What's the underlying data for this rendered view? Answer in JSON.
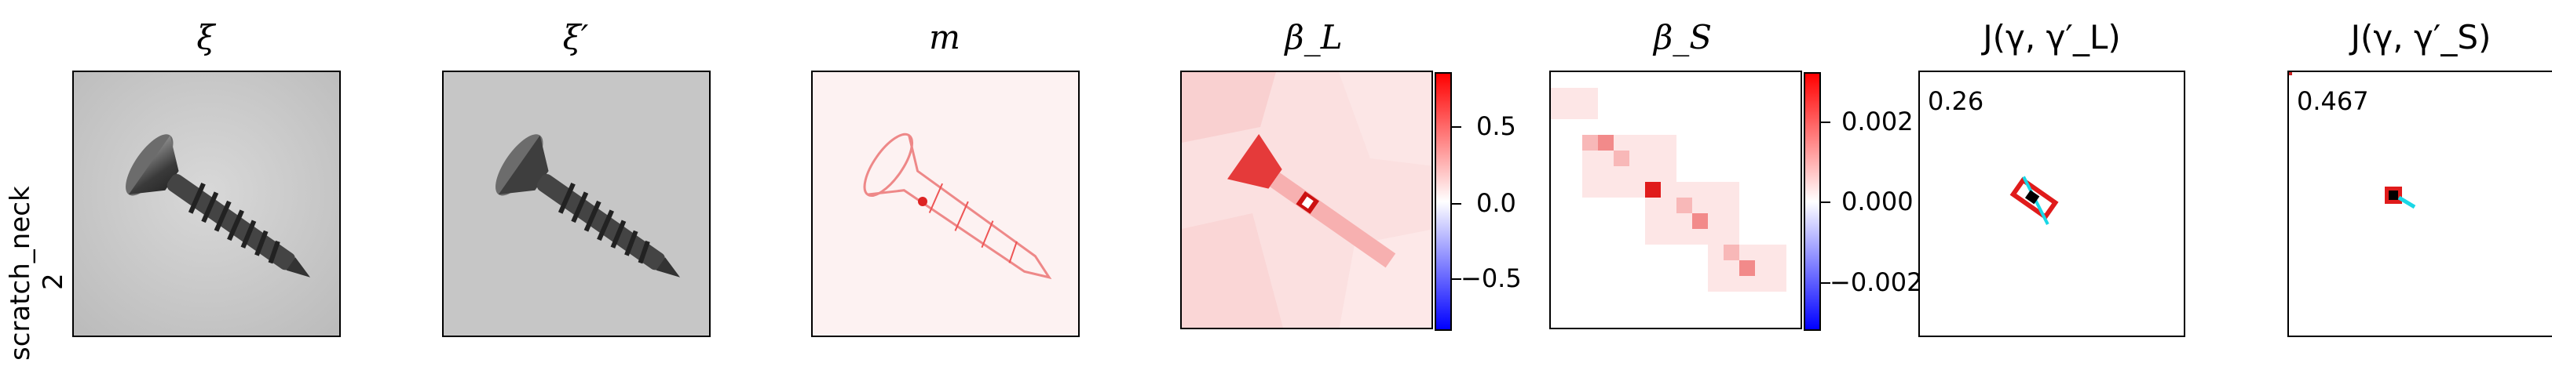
{
  "row_label": {
    "line1": "scratch_neck",
    "line2": "2"
  },
  "panels": [
    {
      "title": "ξ"
    },
    {
      "title": "ξ′"
    },
    {
      "title": "m"
    },
    {
      "title": "β_L",
      "colorbar_ticks": [
        "0.5",
        "0.0",
        "−0.5"
      ]
    },
    {
      "title": "β_S",
      "colorbar_ticks": [
        "0.002",
        "0.000",
        "−0.002"
      ]
    },
    {
      "title": "J(γ, γ′_L)",
      "score": "0.26"
    },
    {
      "title": "J(γ, γ′_S)",
      "score": "0.467"
    }
  ],
  "colors": {
    "red": "#e01b1b",
    "cyan": "#19d7e6",
    "black": "#000000"
  }
}
